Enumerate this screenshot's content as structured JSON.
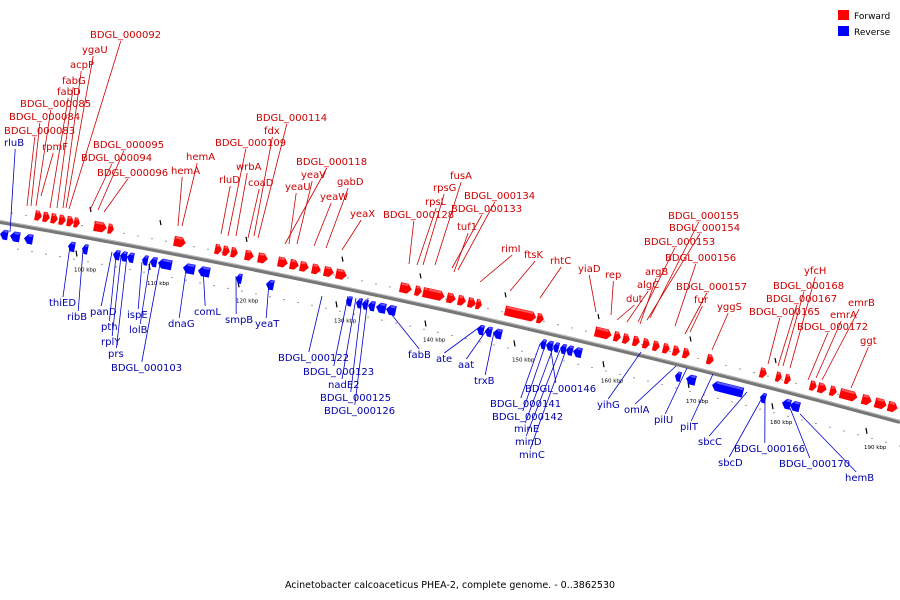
{
  "legend": {
    "forward_label": "Forward",
    "reverse_label": "Reverse",
    "forward_color": "#ff0000",
    "reverse_color": "#0000ff"
  },
  "footer": {
    "caption": "Acinetobacter calcoaceticus PHEA-2, complete genome. - 0..3862530"
  },
  "scale_ticks": [
    "100 kbp",
    "110 kbp",
    "120 kbp",
    "130 kbp",
    "140 kbp",
    "150 kbp",
    "160 kbp",
    "170 kbp",
    "180 kbp",
    "190 kbp"
  ],
  "forward_genes": [
    "rpmF",
    "fabG",
    "fabD",
    "acpP",
    "ygaU",
    "BDGL_000092",
    "BDGL_000085",
    "BDGL_000084",
    "BDGL_000083",
    "BDGL_000095",
    "BDGL_000094",
    "BDGL_000096",
    "hemA",
    "hemA",
    "BDGL_000114",
    "fdx",
    "BDGL_000109",
    "wrbA",
    "rluD",
    "coaD",
    "BDGL_000118",
    "yeaV",
    "yeaU",
    "gabD",
    "yeaW",
    "yeaX",
    "fusA",
    "rpsG",
    "BDGL_000134",
    "rpsL",
    "BDGL_000128",
    "BDGL_000133",
    "tuf1",
    "rimI",
    "ftsK",
    "rhtC",
    "yiaD",
    "rep",
    "BDGL_000155",
    "BDGL_000154",
    "BDGL_000153",
    "BDGL_000156",
    "argB",
    "algC",
    "dut",
    "BDGL_000157",
    "fur",
    "yggS",
    "yfcH",
    "BDGL_000168",
    "BDGL_000167",
    "BDGL_000165",
    "emrB",
    "emrA",
    "BDGL_000172",
    "ggt"
  ],
  "reverse_genes": [
    "rluB",
    "thiED",
    "ribB",
    "panD",
    "pth",
    "rplY",
    "prs",
    "ispE",
    "lolB",
    "BDGL_000103",
    "dnaG",
    "comL",
    "smpB",
    "yeaT",
    "BDGL_000122",
    "BDGL_000123",
    "nadE2",
    "BDGL_000125",
    "BDGL_000126",
    "fabB",
    "ate",
    "aat",
    "trxB",
    "BDGL_000146",
    "BDGL_000141",
    "BDGL_000142",
    "minE",
    "minD",
    "minC",
    "yihG",
    "omlA",
    "pilU",
    "pilT",
    "sbcC",
    "sbcD",
    "BDGL_000166",
    "BDGL_000170",
    "hemB"
  ]
}
